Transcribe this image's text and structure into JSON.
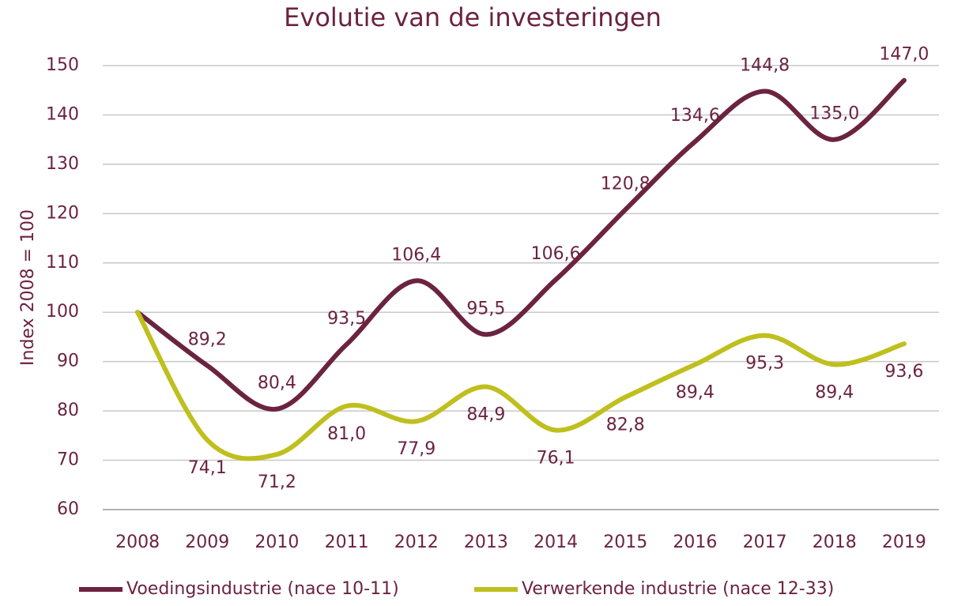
{
  "chart_data": {
    "type": "line",
    "title": "Evolutie van de investeringen",
    "y_label": "Index 2008 = 100",
    "categories": [
      "2008",
      "2009",
      "2010",
      "2011",
      "2012",
      "2013",
      "2014",
      "2015",
      "2016",
      "2017",
      "2018",
      "2019"
    ],
    "series": [
      {
        "name": "Voedingsindustrie (nace 10-11)",
        "color": "#6b2340",
        "values": [
          100,
          89.2,
          80.4,
          93.5,
          106.4,
          95.5,
          106.6,
          120.8,
          134.6,
          144.8,
          135.0,
          147.0
        ],
        "value_labels": [
          null,
          "89,2",
          "80,4",
          "93,5",
          "106,4",
          "95,5",
          "106,6",
          "120,8",
          "134,6",
          "144,8",
          "135,0",
          "147,0"
        ]
      },
      {
        "name": "Verwerkende industrie (nace 12-33)",
        "color": "#bfbf1e",
        "values": [
          100,
          74.1,
          71.2,
          81.0,
          77.9,
          84.9,
          76.1,
          82.8,
          89.4,
          95.3,
          89.4,
          93.6
        ],
        "value_labels": [
          null,
          "74,1",
          "71,2",
          "81,0",
          "77,9",
          "84,9",
          "76,1",
          "82,8",
          "89,4",
          "95,3",
          "89,4",
          "93,6"
        ]
      }
    ],
    "ylim": [
      60,
      150
    ],
    "yticks": [
      60,
      70,
      80,
      90,
      100,
      110,
      120,
      130,
      140,
      150
    ],
    "grid": true,
    "legend": "bottom"
  }
}
